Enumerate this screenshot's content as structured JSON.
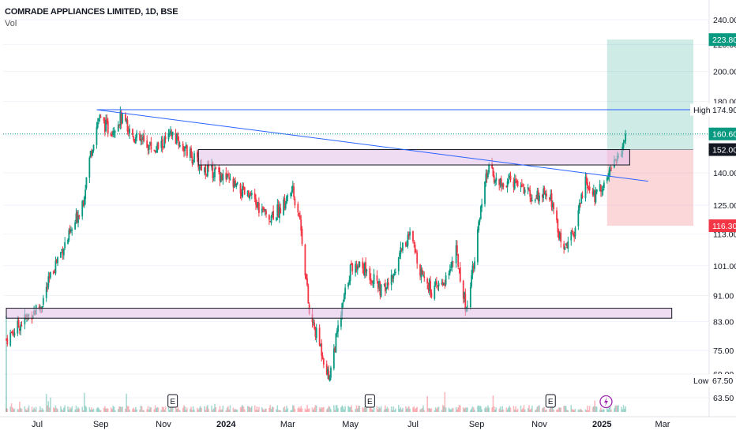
{
  "header": {
    "symbol_title": "COMRADE APPLIANCES LIMITED, 1D, BSE",
    "volume_label": "Vol"
  },
  "chart_data": {
    "type": "candlestick",
    "title": "COMRADE APPLIANCES LIMITED, 1D, BSE",
    "y_axis": {
      "ticks": [
        "240.00",
        "220.00",
        "200.00",
        "180.00",
        "160.00",
        "140.00",
        "125.00",
        "113.00",
        "101.00",
        "91.00",
        "83.00",
        "75.00",
        "69.00",
        "63.50"
      ],
      "tick_values": [
        240,
        220,
        200,
        180,
        160,
        140,
        125,
        113,
        101,
        91,
        83,
        75,
        69,
        63.5
      ],
      "scale": "log",
      "range": [
        62,
        245
      ]
    },
    "x_axis": {
      "ticks": [
        "Jul",
        "Sep",
        "Nov",
        "2024",
        "Mar",
        "May",
        "Jul",
        "Sep",
        "Nov",
        "2025",
        "Mar"
      ],
      "bold_ticks": [
        "2024",
        "2025"
      ]
    },
    "price_labels": [
      {
        "text": "223.80",
        "value": 223.8,
        "color": "#089981"
      },
      {
        "text": "174.90",
        "value": 174.9,
        "color": "#ffffff",
        "prefix": "High"
      },
      {
        "text": "160.60",
        "value": 160.6,
        "color": "#089981"
      },
      {
        "text": "152.00",
        "value": 152.0,
        "color": "#131722"
      },
      {
        "text": "116.30",
        "value": 116.3,
        "color": "#f23645"
      },
      {
        "text": "67.50",
        "value": 67.5,
        "color": "#ffffff",
        "prefix": "Low"
      }
    ],
    "high_label": "High",
    "low_label": "Low",
    "last_price": 160.6,
    "zones": [
      {
        "name": "upper-resistance-zone",
        "from": "2023-12-05",
        "to": "2025-01-28",
        "top": 152,
        "bottom": 144
      },
      {
        "name": "lower-support-zone",
        "from": "2023-06-01",
        "to": "2025-03-10",
        "top": 87,
        "bottom": 84
      }
    ],
    "lines": [
      {
        "name": "all-time-high-line",
        "x1": "2023-08-28",
        "y1": 174.9,
        "x2": "2025-03-31",
        "y2": 174.9,
        "color": "#2962ff"
      },
      {
        "name": "descending-trendline",
        "x1": "2023-08-28",
        "y1": 174.9,
        "x2": "2025-02-15",
        "y2": 136,
        "color": "#2962ff"
      }
    ],
    "position": {
      "entry": 152.0,
      "target": 223.8,
      "stop": 116.3,
      "from": "2025-01-06",
      "to": "2025-03-31"
    },
    "event_markers": [
      {
        "label": "E",
        "date": "2023-11-10"
      },
      {
        "label": "E",
        "date": "2024-05-20"
      },
      {
        "label": "E",
        "date": "2024-11-12"
      }
    ],
    "flash_marker": "2025-01-05",
    "price_path": [
      [
        "2023-06-01",
        78
      ],
      [
        "2023-06-20",
        84
      ],
      [
        "2023-07-05",
        88
      ],
      [
        "2023-07-20",
        103
      ],
      [
        "2023-08-05",
        115
      ],
      [
        "2023-08-15",
        128
      ],
      [
        "2023-08-22",
        150
      ],
      [
        "2023-08-30",
        170
      ],
      [
        "2023-09-10",
        162
      ],
      [
        "2023-09-20",
        170
      ],
      [
        "2023-10-05",
        158
      ],
      [
        "2023-10-25",
        152
      ],
      [
        "2023-11-10",
        160
      ],
      [
        "2023-11-25",
        150
      ],
      [
        "2023-12-10",
        142
      ],
      [
        "2023-12-25",
        140
      ],
      [
        "2024-01-10",
        133
      ],
      [
        "2024-01-25",
        128
      ],
      [
        "2024-02-10",
        120
      ],
      [
        "2024-02-25",
        124
      ],
      [
        "2024-03-05",
        132
      ],
      [
        "2024-03-12",
        122
      ],
      [
        "2024-03-22",
        85
      ],
      [
        "2024-04-02",
        76
      ],
      [
        "2024-04-10",
        68
      ],
      [
        "2024-04-20",
        82
      ],
      [
        "2024-05-01",
        100
      ],
      [
        "2024-05-10",
        102
      ],
      [
        "2024-05-20",
        98
      ],
      [
        "2024-06-01",
        92
      ],
      [
        "2024-06-10",
        96
      ],
      [
        "2024-06-20",
        108
      ],
      [
        "2024-06-28",
        112
      ],
      [
        "2024-07-08",
        100
      ],
      [
        "2024-07-20",
        92
      ],
      [
        "2024-08-01",
        96
      ],
      [
        "2024-08-12",
        106
      ],
      [
        "2024-08-22",
        86
      ],
      [
        "2024-09-01",
        110
      ],
      [
        "2024-09-12",
        142
      ],
      [
        "2024-09-25",
        134
      ],
      [
        "2024-10-10",
        137
      ],
      [
        "2024-10-25",
        128
      ],
      [
        "2024-11-05",
        130
      ],
      [
        "2024-11-15",
        126
      ],
      [
        "2024-11-22",
        108
      ],
      [
        "2024-12-05",
        112
      ],
      [
        "2024-12-15",
        136
      ],
      [
        "2024-12-25",
        129
      ],
      [
        "2025-01-05",
        138
      ],
      [
        "2025-01-12",
        145
      ],
      [
        "2025-01-20",
        150
      ],
      [
        "2025-01-24",
        160.6
      ]
    ]
  }
}
